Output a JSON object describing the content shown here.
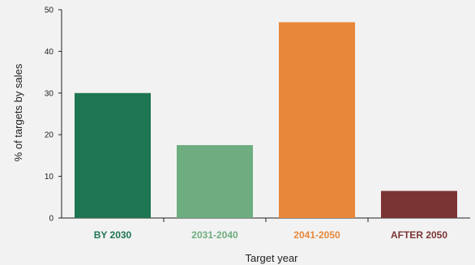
{
  "chart_data": {
    "type": "bar",
    "title": "",
    "xlabel": "Target year",
    "ylabel": "% of targets by sales",
    "ylim": [
      0,
      50
    ],
    "yticks": [
      0,
      10,
      20,
      30,
      40,
      50
    ],
    "grid": false,
    "categories": [
      "BY 2030",
      "2031-2040",
      "2041-2050",
      "AFTER 2050"
    ],
    "values": [
      30,
      17.5,
      47,
      6.5
    ],
    "colors": [
      "#1e7552",
      "#6dad7f",
      "#e8873a",
      "#7a3434"
    ]
  }
}
